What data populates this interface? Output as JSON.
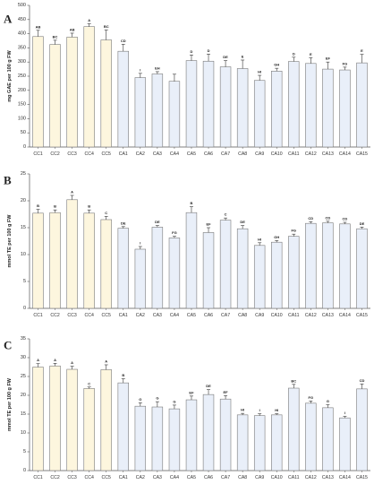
{
  "chart_data": [
    {
      "panel_label": "A",
      "type": "bar",
      "ylabel": "mg GAE per 100 g FW",
      "ylim": [
        0,
        500
      ],
      "yticks": [
        0,
        50,
        100,
        150,
        200,
        250,
        300,
        350,
        400,
        450,
        500
      ],
      "grid": false,
      "categories": [
        "CC1",
        "CC2",
        "CC3",
        "CC4",
        "CC5",
        "CA1",
        "CA2",
        "CA3",
        "CA4",
        "CA5",
        "CA6",
        "CA7",
        "CA8",
        "CA9",
        "CA10",
        "CA11",
        "CA12",
        "CA13",
        "CA14",
        "CA15"
      ],
      "values": [
        390,
        362,
        388,
        425,
        378,
        338,
        245,
        258,
        232,
        305,
        303,
        283,
        277,
        235,
        268,
        302,
        295,
        275,
        272,
        297
      ],
      "errors": [
        22,
        15,
        14,
        10,
        35,
        25,
        15,
        8,
        25,
        20,
        25,
        22,
        30,
        18,
        10,
        15,
        20,
        25,
        10,
        30
      ],
      "letters": [
        "AB",
        "BC",
        "AB",
        "A",
        "BC",
        "CD",
        "I",
        "EH",
        "",
        "D",
        "D",
        "DE",
        "E",
        "HI",
        "GH",
        "D",
        "E",
        "EF",
        "FG",
        "E"
      ],
      "colors": {
        "CC": "#fdf6de",
        "CA": "#e9eff9"
      }
    },
    {
      "panel_label": "B",
      "type": "bar",
      "ylabel": "mmol TE per 100 g FW",
      "ylim": [
        0,
        25
      ],
      "yticks": [
        0,
        5,
        10,
        15,
        20,
        25
      ],
      "grid": false,
      "categories": [
        "CC1",
        "CC2",
        "CC3",
        "CC4",
        "CC5",
        "CA1",
        "CA2",
        "CA3",
        "CA4",
        "CA5",
        "CA6",
        "CA7",
        "CA8",
        "CA9",
        "CA10",
        "CA11",
        "CA12",
        "CA13",
        "CA14",
        "CA15"
      ],
      "values": [
        17.7,
        17.8,
        20.2,
        17.7,
        16.5,
        14.9,
        11.0,
        15.1,
        13.1,
        17.8,
        14.1,
        16.4,
        14.8,
        11.7,
        12.3,
        13.4,
        15.8,
        15.9,
        15.7,
        14.8
      ],
      "errors": [
        0.7,
        0.5,
        0.8,
        0.6,
        0.6,
        0.3,
        0.5,
        0.3,
        0.3,
        1.1,
        0.9,
        0.4,
        0.6,
        0.5,
        0.3,
        0.4,
        0.3,
        0.3,
        0.3,
        0.3
      ],
      "letters": [
        "B",
        "B",
        "A",
        "B",
        "C",
        "DE",
        "I",
        "DE",
        "FG",
        "B",
        "EF",
        "C",
        "DE",
        "HI",
        "GH",
        "FG",
        "CD",
        "CD",
        "CD",
        "DE"
      ],
      "colors": {
        "CC": "#fdf6de",
        "CA": "#e9eff9"
      }
    },
    {
      "panel_label": "C",
      "type": "bar",
      "ylabel": "mmol TE per 100 g FW",
      "ylim": [
        0,
        35
      ],
      "yticks": [
        0,
        5,
        10,
        15,
        20,
        25,
        30,
        35
      ],
      "grid": false,
      "categories": [
        "CC1",
        "CC2",
        "CC3",
        "CC4",
        "CC5",
        "CA1",
        "CA2",
        "CA3",
        "CA4",
        "CA5",
        "CA6",
        "CA7",
        "CA8",
        "CA9",
        "CA10",
        "CA11",
        "CA12",
        "CA13",
        "CA14",
        "CA15"
      ],
      "values": [
        27.5,
        27.8,
        26.9,
        21.8,
        26.8,
        23.3,
        17.1,
        16.9,
        16.4,
        18.8,
        20.2,
        19.0,
        14.8,
        14.6,
        14.8,
        21.9,
        17.9,
        16.7,
        14.0,
        21.7
      ],
      "errors": [
        0.9,
        0.7,
        0.8,
        0.4,
        1.3,
        1.1,
        0.9,
        1.4,
        1.0,
        1.0,
        1.3,
        0.9,
        0.4,
        0.5,
        0.3,
        1.0,
        0.6,
        0.8,
        0.4,
        1.3
      ],
      "letters": [
        "A",
        "A",
        "A",
        "C",
        "A",
        "B",
        "G",
        "G",
        "G",
        "EF",
        "DE",
        "EF",
        "HI",
        "I",
        "HI",
        "BC",
        "FG",
        "G",
        "I",
        "CD"
      ],
      "colors": {
        "CC": "#fdf6de",
        "CA": "#e9eff9"
      }
    }
  ]
}
